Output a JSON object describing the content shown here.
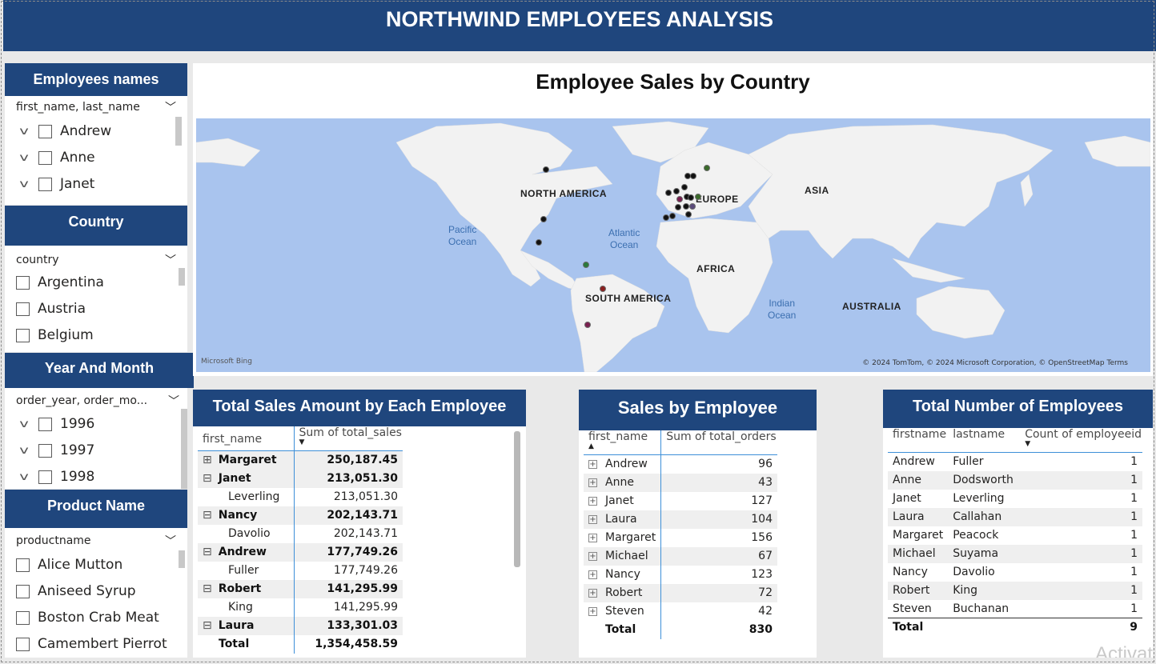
{
  "header": {
    "title": "NORTHWIND EMPLOYEES ANALYSIS"
  },
  "employees_slicer": {
    "title": "Employees names",
    "field": "first_name, last_name",
    "items": [
      "Andrew",
      "Anne",
      "Janet"
    ]
  },
  "country_slicer": {
    "title": "Country",
    "field": "country",
    "items": [
      "Argentina",
      "Austria",
      "Belgium"
    ]
  },
  "year_slicer": {
    "title": "Year And Month",
    "field": "order_year, order_mo...",
    "items": [
      "1996",
      "1997",
      "1998"
    ]
  },
  "product_slicer": {
    "title": "Product Name",
    "field": "productname",
    "items": [
      "Alice Mutton",
      "Aniseed Syrup",
      "Boston Crab Meat",
      "Camembert Pierrot"
    ]
  },
  "map": {
    "title": "Employee Sales by Country",
    "continents": [
      "NORTH AMERICA",
      "EUROPE",
      "ASIA",
      "AFRICA",
      "SOUTH AMERICA",
      "AUSTRALIA"
    ],
    "oceans": [
      "Pacific\nOcean",
      "Atlantic\nOcean",
      "Indian\nOcean"
    ],
    "credit": "© 2024 TomTom, © 2024 Microsoft Corporation, © OpenStreetMap   Terms",
    "logo": "Microsoft Bing"
  },
  "sales_amount": {
    "title": "Total Sales Amount by Each Employee",
    "col1": "first_name",
    "col2": "Sum of total_sales",
    "rows": [
      {
        "expander": "⊞",
        "name": "Margaret",
        "value": "250,187.45",
        "bold": true
      },
      {
        "expander": "⊟",
        "name": "Janet",
        "value": "213,051.30",
        "bold": true
      },
      {
        "expander": "",
        "name": "Leverling",
        "value": "213,051.30",
        "bold": false
      },
      {
        "expander": "⊟",
        "name": "Nancy",
        "value": "202,143.71",
        "bold": true
      },
      {
        "expander": "",
        "name": "Davolio",
        "value": "202,143.71",
        "bold": false
      },
      {
        "expander": "⊟",
        "name": "Andrew",
        "value": "177,749.26",
        "bold": true
      },
      {
        "expander": "",
        "name": "Fuller",
        "value": "177,749.26",
        "bold": false
      },
      {
        "expander": "⊟",
        "name": "Robert",
        "value": "141,295.99",
        "bold": true
      },
      {
        "expander": "",
        "name": "King",
        "value": "141,295.99",
        "bold": false
      },
      {
        "expander": "⊟",
        "name": "Laura",
        "value": "133,301.03",
        "bold": true
      }
    ],
    "total_label": "Total",
    "total_value": "1,354,458.59"
  },
  "sales_by_employee": {
    "title": "Sales by Employee",
    "col1": "first_name",
    "col2": "Sum of total_orders",
    "rows": [
      {
        "name": "Andrew",
        "value": "96"
      },
      {
        "name": "Anne",
        "value": "43"
      },
      {
        "name": "Janet",
        "value": "127"
      },
      {
        "name": "Laura",
        "value": "104"
      },
      {
        "name": "Margaret",
        "value": "156"
      },
      {
        "name": "Michael",
        "value": "67"
      },
      {
        "name": "Nancy",
        "value": "123"
      },
      {
        "name": "Robert",
        "value": "72"
      },
      {
        "name": "Steven",
        "value": "42"
      }
    ],
    "total_label": "Total",
    "total_value": "830"
  },
  "employee_count": {
    "title": "Total Number of Employees",
    "col1": "firstname",
    "col2": "lastname",
    "col3": "Count of employeeid",
    "rows": [
      {
        "first": "Andrew",
        "last": "Fuller",
        "count": "1"
      },
      {
        "first": "Anne",
        "last": "Dodsworth",
        "count": "1"
      },
      {
        "first": "Janet",
        "last": "Leverling",
        "count": "1"
      },
      {
        "first": "Laura",
        "last": "Callahan",
        "count": "1"
      },
      {
        "first": "Margaret",
        "last": "Peacock",
        "count": "1"
      },
      {
        "first": "Michael",
        "last": "Suyama",
        "count": "1"
      },
      {
        "first": "Nancy",
        "last": "Davolio",
        "count": "1"
      },
      {
        "first": "Robert",
        "last": "King",
        "count": "1"
      },
      {
        "first": "Steven",
        "last": "Buchanan",
        "count": "1"
      }
    ],
    "total_label": "Total",
    "total_value": "9"
  },
  "watermark": "Activat",
  "colors": {
    "header": "#1f467d",
    "map_water": "#a9c4ee",
    "map_land": "#f2f2f2",
    "accent_line": "#3d8fd8"
  }
}
